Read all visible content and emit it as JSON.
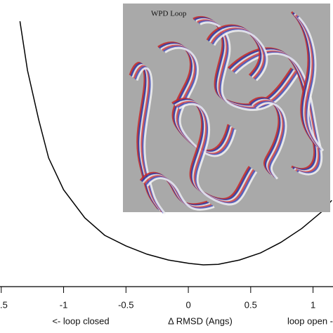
{
  "chart_data": {
    "type": "line",
    "x_axis_labels": [
      "<- loop closed",
      "Δ RMSD (Angs)",
      "loop open -"
    ],
    "annotation": "WPD Loop",
    "x": [
      -1.35,
      -1.29,
      -1.2,
      -1.12,
      -1.0,
      -0.83,
      -0.67,
      -0.5,
      -0.33,
      -0.16,
      0.01,
      0.12,
      0.24,
      0.41,
      0.58,
      0.74,
      0.91,
      1.08,
      1.15
    ],
    "series": [
      {
        "color": "#000000",
        "values": [
          92.6,
          75.5,
          58.3,
          44.9,
          33.8,
          24.0,
          17.9,
          14.2,
          11.3,
          9.3,
          8.1,
          7.6,
          7.8,
          9.3,
          11.8,
          15.4,
          20.3,
          26.5,
          30.1
        ]
      }
    ],
    "xlim": [
      -1.51,
      1.16
    ],
    "ylim": [
      0,
      100
    ],
    "xticks": [
      {
        "value": -1.5,
        "label": ".5"
      },
      -1.0,
      -0.5,
      0.0,
      0.5,
      1.0
    ]
  }
}
